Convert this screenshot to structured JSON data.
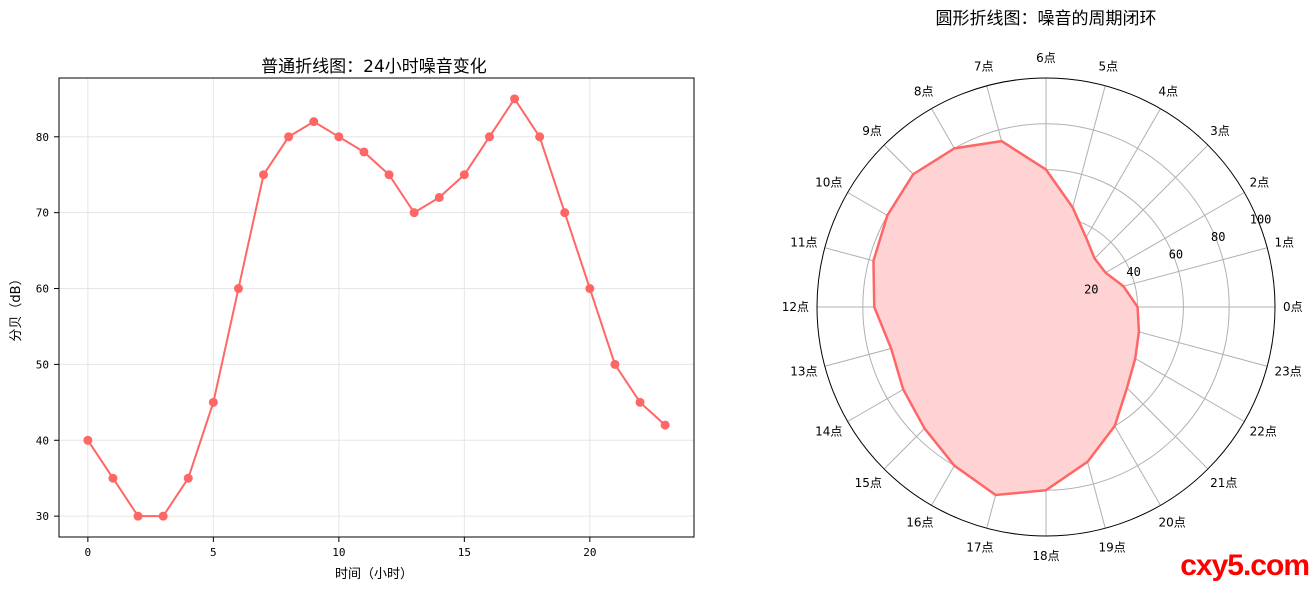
{
  "colors": {
    "series": "#ff6666",
    "fill": "#ffd3d3",
    "grid": "#e6e6e6",
    "polar_grid": "#b0b0b0"
  },
  "chart_data": [
    {
      "type": "line",
      "title": "普通折线图：24小时噪音变化",
      "xlabel": "时间（小时）",
      "ylabel": "分贝（dB）",
      "x": [
        0,
        1,
        2,
        3,
        4,
        5,
        6,
        7,
        8,
        9,
        10,
        11,
        12,
        13,
        14,
        15,
        16,
        17,
        18,
        19,
        20,
        21,
        22,
        23
      ],
      "series": [
        {
          "values": [
            40,
            35,
            30,
            30,
            35,
            45,
            60,
            75,
            80,
            82,
            80,
            78,
            75,
            70,
            72,
            75,
            80,
            85,
            80,
            70,
            60,
            50,
            45,
            42
          ]
        }
      ],
      "xticks": [
        0,
        5,
        10,
        15,
        20
      ],
      "yticks": [
        30,
        40,
        50,
        60,
        70,
        80
      ],
      "xlim": [
        -1.15,
        24.15
      ],
      "ylim": [
        27.25,
        87.75
      ],
      "grid": true
    },
    {
      "type": "line",
      "subtype": "polar",
      "title": "圆形折线图：噪音的周期闭环",
      "categories": [
        "0点",
        "1点",
        "2点",
        "3点",
        "4点",
        "5点",
        "6点",
        "7点",
        "8点",
        "9点",
        "10点",
        "11点",
        "12点",
        "13点",
        "14点",
        "15点",
        "16点",
        "17点",
        "18点",
        "19点",
        "20点",
        "21点",
        "22点",
        "23点"
      ],
      "series": [
        {
          "values": [
            40,
            35,
            30,
            30,
            35,
            45,
            60,
            75,
            80,
            82,
            80,
            78,
            75,
            70,
            72,
            75,
            80,
            85,
            80,
            70,
            60,
            50,
            45,
            42
          ]
        }
      ],
      "rticks": [
        20,
        40,
        60,
        80,
        100
      ],
      "rlim": [
        0,
        100
      ],
      "grid": true,
      "filled": true
    }
  ],
  "watermark": "cxy5.com"
}
